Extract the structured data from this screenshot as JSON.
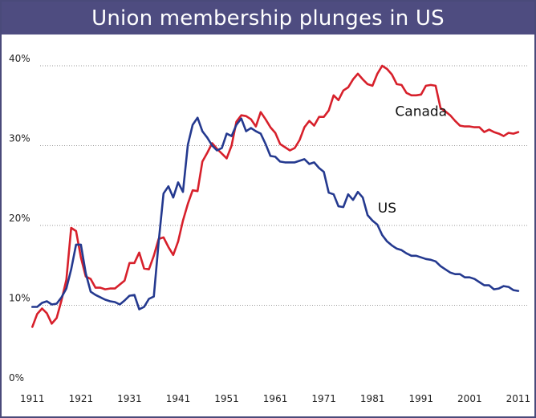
{
  "chart_data": {
    "type": "line",
    "title": "Union membership plunges in US",
    "xlabel": "",
    "ylabel": "",
    "xlim": [
      1906,
      2013
    ],
    "ylim": [
      0,
      40
    ],
    "grid": true,
    "y_ticks": [
      0,
      10,
      20,
      30,
      40
    ],
    "y_tick_labels": [
      "0%",
      "10%",
      "20%",
      "30%",
      "40%"
    ],
    "x_ticks": [
      1911,
      1921,
      1931,
      1941,
      1951,
      1961,
      1971,
      1981,
      1991,
      2001,
      2011
    ],
    "x_tick_labels": [
      "1911",
      "1921",
      "1931",
      "1941",
      "1951",
      "1961",
      "1971",
      "1981",
      "1991",
      "2001",
      "2011"
    ],
    "series": [
      {
        "name": "Canada",
        "color": "#d7202b",
        "points": [
          [
            1911,
            7.3
          ],
          [
            1912,
            8.9
          ],
          [
            1913,
            9.6
          ],
          [
            1914,
            9.0
          ],
          [
            1915,
            7.7
          ],
          [
            1916,
            8.4
          ],
          [
            1917,
            10.6
          ],
          [
            1918,
            13.2
          ],
          [
            1919,
            19.7
          ],
          [
            1920,
            19.3
          ],
          [
            1921,
            16.0
          ],
          [
            1922,
            13.6
          ],
          [
            1923,
            13.3
          ],
          [
            1924,
            12.2
          ],
          [
            1925,
            12.2
          ],
          [
            1926,
            12.0
          ],
          [
            1927,
            12.1
          ],
          [
            1928,
            12.1
          ],
          [
            1929,
            12.6
          ],
          [
            1930,
            13.1
          ],
          [
            1931,
            15.3
          ],
          [
            1932,
            15.3
          ],
          [
            1933,
            16.6
          ],
          [
            1934,
            14.6
          ],
          [
            1935,
            14.5
          ],
          [
            1936,
            16.2
          ],
          [
            1937,
            18.3
          ],
          [
            1938,
            18.5
          ],
          [
            1939,
            17.3
          ],
          [
            1940,
            16.3
          ],
          [
            1941,
            18.0
          ],
          [
            1942,
            20.6
          ],
          [
            1943,
            22.7
          ],
          [
            1944,
            24.4
          ],
          [
            1945,
            24.3
          ],
          [
            1946,
            28.0
          ],
          [
            1947,
            29.1
          ],
          [
            1948,
            30.3
          ],
          [
            1949,
            29.6
          ],
          [
            1950,
            29.0
          ],
          [
            1951,
            28.4
          ],
          [
            1952,
            30.0
          ],
          [
            1953,
            33.0
          ],
          [
            1954,
            33.8
          ],
          [
            1955,
            33.7
          ],
          [
            1956,
            33.3
          ],
          [
            1957,
            32.4
          ],
          [
            1958,
            34.2
          ],
          [
            1959,
            33.3
          ],
          [
            1960,
            32.3
          ],
          [
            1961,
            31.6
          ],
          [
            1962,
            30.2
          ],
          [
            1963,
            29.8
          ],
          [
            1964,
            29.4
          ],
          [
            1965,
            29.7
          ],
          [
            1966,
            30.7
          ],
          [
            1967,
            32.3
          ],
          [
            1968,
            33.1
          ],
          [
            1969,
            32.5
          ],
          [
            1970,
            33.6
          ],
          [
            1971,
            33.6
          ],
          [
            1972,
            34.4
          ],
          [
            1973,
            36.3
          ],
          [
            1974,
            35.7
          ],
          [
            1975,
            36.9
          ],
          [
            1976,
            37.3
          ],
          [
            1977,
            38.3
          ],
          [
            1978,
            39.0
          ],
          [
            1979,
            38.3
          ],
          [
            1980,
            37.7
          ],
          [
            1981,
            37.5
          ],
          [
            1982,
            39.0
          ],
          [
            1983,
            40.0
          ],
          [
            1984,
            39.6
          ],
          [
            1985,
            38.9
          ],
          [
            1986,
            37.7
          ],
          [
            1987,
            37.6
          ],
          [
            1988,
            36.6
          ],
          [
            1989,
            36.3
          ],
          [
            1990,
            36.3
          ],
          [
            1991,
            36.4
          ],
          [
            1992,
            37.5
          ],
          [
            1993,
            37.6
          ],
          [
            1994,
            37.5
          ],
          [
            1995,
            34.7
          ],
          [
            1996,
            34.3
          ],
          [
            1997,
            33.8
          ],
          [
            1998,
            33.1
          ],
          [
            1999,
            32.5
          ],
          [
            2000,
            32.4
          ],
          [
            2001,
            32.4
          ],
          [
            2002,
            32.3
          ],
          [
            2003,
            32.3
          ],
          [
            2004,
            31.7
          ],
          [
            2005,
            32.0
          ],
          [
            2006,
            31.7
          ],
          [
            2007,
            31.5
          ],
          [
            2008,
            31.2
          ],
          [
            2009,
            31.6
          ],
          [
            2010,
            31.5
          ],
          [
            2011,
            31.7
          ]
        ]
      },
      {
        "name": "US",
        "color": "#24398f",
        "points": [
          [
            1911,
            9.8
          ],
          [
            1912,
            9.8
          ],
          [
            1913,
            10.3
          ],
          [
            1914,
            10.5
          ],
          [
            1915,
            10.1
          ],
          [
            1916,
            10.2
          ],
          [
            1917,
            11.0
          ],
          [
            1918,
            12.1
          ],
          [
            1919,
            14.5
          ],
          [
            1920,
            17.6
          ],
          [
            1921,
            17.6
          ],
          [
            1922,
            14.0
          ],
          [
            1923,
            11.7
          ],
          [
            1924,
            11.3
          ],
          [
            1925,
            11.0
          ],
          [
            1926,
            10.7
          ],
          [
            1927,
            10.5
          ],
          [
            1928,
            10.4
          ],
          [
            1929,
            10.1
          ],
          [
            1930,
            10.6
          ],
          [
            1931,
            11.2
          ],
          [
            1932,
            11.3
          ],
          [
            1933,
            9.5
          ],
          [
            1934,
            9.8
          ],
          [
            1935,
            10.8
          ],
          [
            1936,
            11.1
          ],
          [
            1937,
            17.9
          ],
          [
            1938,
            24.0
          ],
          [
            1939,
            24.9
          ],
          [
            1940,
            23.5
          ],
          [
            1941,
            25.4
          ],
          [
            1942,
            24.2
          ],
          [
            1943,
            30.1
          ],
          [
            1944,
            32.6
          ],
          [
            1945,
            33.5
          ],
          [
            1946,
            31.8
          ],
          [
            1947,
            31.0
          ],
          [
            1948,
            30.0
          ],
          [
            1949,
            29.4
          ],
          [
            1950,
            29.7
          ],
          [
            1951,
            31.5
          ],
          [
            1952,
            31.2
          ],
          [
            1953,
            32.6
          ],
          [
            1954,
            33.4
          ],
          [
            1955,
            31.8
          ],
          [
            1956,
            32.2
          ],
          [
            1957,
            31.8
          ],
          [
            1958,
            31.5
          ],
          [
            1959,
            30.2
          ],
          [
            1960,
            28.7
          ],
          [
            1961,
            28.6
          ],
          [
            1962,
            28.0
          ],
          [
            1963,
            27.9
          ],
          [
            1964,
            27.9
          ],
          [
            1965,
            27.9
          ],
          [
            1966,
            28.1
          ],
          [
            1967,
            28.3
          ],
          [
            1968,
            27.7
          ],
          [
            1969,
            27.9
          ],
          [
            1970,
            27.2
          ],
          [
            1971,
            26.7
          ],
          [
            1972,
            24.1
          ],
          [
            1973,
            23.9
          ],
          [
            1974,
            22.4
          ],
          [
            1975,
            22.3
          ],
          [
            1976,
            23.9
          ],
          [
            1977,
            23.2
          ],
          [
            1978,
            24.2
          ],
          [
            1979,
            23.5
          ],
          [
            1980,
            21.3
          ],
          [
            1981,
            20.6
          ],
          [
            1982,
            20.1
          ],
          [
            1983,
            18.8
          ],
          [
            1984,
            18.0
          ],
          [
            1985,
            17.5
          ],
          [
            1986,
            17.1
          ],
          [
            1987,
            16.9
          ],
          [
            1988,
            16.5
          ],
          [
            1989,
            16.2
          ],
          [
            1990,
            16.2
          ],
          [
            1991,
            16.0
          ],
          [
            1992,
            15.8
          ],
          [
            1993,
            15.7
          ],
          [
            1994,
            15.5
          ],
          [
            1995,
            14.9
          ],
          [
            1996,
            14.5
          ],
          [
            1997,
            14.1
          ],
          [
            1998,
            13.9
          ],
          [
            1999,
            13.9
          ],
          [
            2000,
            13.5
          ],
          [
            2001,
            13.5
          ],
          [
            2002,
            13.3
          ],
          [
            2003,
            12.9
          ],
          [
            2004,
            12.5
          ],
          [
            2005,
            12.5
          ],
          [
            2006,
            12.0
          ],
          [
            2007,
            12.1
          ],
          [
            2008,
            12.4
          ],
          [
            2009,
            12.3
          ],
          [
            2010,
            11.9
          ],
          [
            2011,
            11.8
          ]
        ]
      }
    ],
    "annotations": [
      {
        "text": "Canada",
        "series": "Canada",
        "x": 1991,
        "y": 33.7
      },
      {
        "text": "US",
        "series": "US",
        "x": 1984,
        "y": 21.6
      }
    ]
  }
}
